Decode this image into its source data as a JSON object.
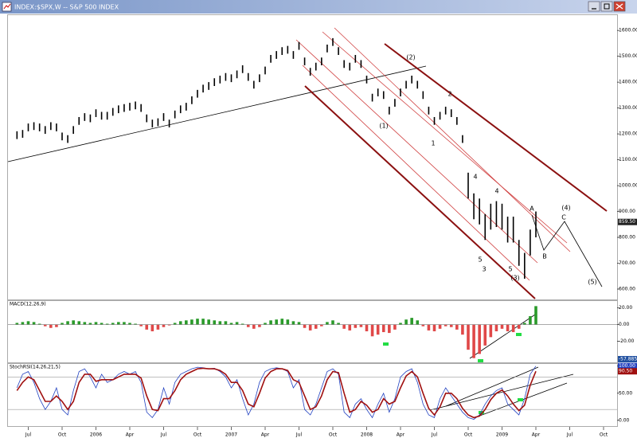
{
  "window": {
    "title": "INDEX:$SPX,W -- S&P 500 INDEX"
  },
  "chart_data": [
    {
      "type": "range-bar",
      "color": "#000000",
      "x": [
        0,
        0.5,
        1,
        1.5,
        2,
        2.5,
        3,
        3.5,
        4,
        4.5,
        5,
        5.5,
        6,
        6.5,
        7,
        7.5,
        8,
        8.5,
        9,
        9.5,
        10,
        10.5,
        11,
        11.5,
        12,
        12.5,
        13,
        13.5,
        14,
        14.5,
        15,
        15.5,
        16,
        16.5,
        17,
        17.5,
        18,
        18.5,
        19,
        19.5,
        20,
        20.5,
        21,
        21.5,
        22,
        22.5,
        23,
        23.5,
        24,
        24.5,
        25,
        25.5,
        26,
        26.5,
        27,
        27.5,
        28,
        28.5,
        29,
        29.5,
        30,
        30.5,
        31,
        31.5,
        32,
        32.5,
        33,
        33.5,
        34,
        34.5,
        35,
        35.5,
        36,
        36.5,
        37,
        37.5,
        38,
        38.5,
        39,
        39.5,
        40,
        40.5,
        41,
        41.5,
        42,
        42.5,
        43,
        43.5,
        44,
        44.5,
        45,
        45.5,
        46
      ],
      "high": [
        1210,
        1215,
        1240,
        1245,
        1240,
        1230,
        1245,
        1240,
        1205,
        1195,
        1230,
        1265,
        1280,
        1275,
        1295,
        1285,
        1285,
        1300,
        1310,
        1315,
        1320,
        1325,
        1315,
        1275,
        1255,
        1260,
        1280,
        1255,
        1290,
        1310,
        1320,
        1345,
        1370,
        1390,
        1400,
        1415,
        1425,
        1435,
        1430,
        1445,
        1465,
        1435,
        1405,
        1430,
        1460,
        1505,
        1520,
        1535,
        1540,
        1520,
        1555,
        1495,
        1455,
        1475,
        1495,
        1545,
        1570,
        1535,
        1485,
        1475,
        1505,
        1485,
        1425,
        1355,
        1375,
        1365,
        1305,
        1335,
        1375,
        1405,
        1425,
        1405,
        1365,
        1305,
        1265,
        1285,
        1305,
        1295,
        1265,
        1195,
        1050,
        970,
        950,
        890,
        930,
        940,
        930,
        880,
        880,
        790,
        740,
        830,
        900
      ],
      "low": [
        1180,
        1185,
        1210,
        1215,
        1210,
        1200,
        1215,
        1210,
        1175,
        1165,
        1200,
        1235,
        1250,
        1245,
        1265,
        1255,
        1255,
        1270,
        1280,
        1285,
        1290,
        1295,
        1285,
        1245,
        1225,
        1230,
        1250,
        1225,
        1260,
        1280,
        1290,
        1315,
        1340,
        1360,
        1370,
        1385,
        1395,
        1405,
        1400,
        1415,
        1435,
        1405,
        1375,
        1400,
        1430,
        1475,
        1490,
        1505,
        1510,
        1490,
        1525,
        1465,
        1425,
        1445,
        1465,
        1515,
        1540,
        1505,
        1455,
        1445,
        1475,
        1455,
        1395,
        1325,
        1345,
        1335,
        1275,
        1305,
        1345,
        1375,
        1395,
        1375,
        1335,
        1275,
        1235,
        1255,
        1275,
        1265,
        1235,
        1165,
        950,
        870,
        850,
        790,
        830,
        840,
        830,
        780,
        780,
        690,
        640,
        730,
        800
      ],
      "xlim": [
        -0.8,
        53.2
      ],
      "ylim": [
        560,
        1662
      ],
      "xticks": [
        {
          "value": 1,
          "label": "Jul"
        },
        {
          "value": 4,
          "label": "Oct"
        },
        {
          "value": 7,
          "label": "2006"
        },
        {
          "value": 10,
          "label": "Apr"
        },
        {
          "value": 13,
          "label": "Jul"
        },
        {
          "value": 16,
          "label": "Oct"
        },
        {
          "value": 19,
          "label": "2007"
        },
        {
          "value": 22,
          "label": "Apr"
        },
        {
          "value": 25,
          "label": "Jul"
        },
        {
          "value": 28,
          "label": "Oct"
        },
        {
          "value": 31,
          "label": "2008"
        },
        {
          "value": 34,
          "label": "Apr"
        },
        {
          "value": 37,
          "label": "Jul"
        },
        {
          "value": 40,
          "label": "Oct"
        },
        {
          "value": 43,
          "label": "2009"
        },
        {
          "value": 46,
          "label": "Apr"
        },
        {
          "value": 49,
          "label": "Jul"
        },
        {
          "value": 52,
          "label": "Oct"
        }
      ],
      "yticks": [
        {
          "value": 1600,
          "label": "1600.00"
        },
        {
          "value": 1500,
          "label": "1500.00"
        },
        {
          "value": 1400,
          "label": "1400.00"
        },
        {
          "value": 1300,
          "label": "1300.00"
        },
        {
          "value": 1200,
          "label": "1200.00"
        },
        {
          "value": 1100,
          "label": "1100.00"
        },
        {
          "value": 1000,
          "label": "1000.00"
        },
        {
          "value": 900,
          "label": "900.00"
        },
        {
          "value": 800,
          "label": "800.00"
        },
        {
          "value": 700,
          "label": "700.00"
        },
        {
          "value": 600,
          "label": "600.00"
        }
      ],
      "last_price": {
        "value": 859.5,
        "label": "859.50"
      },
      "annotations": [
        "(2)",
        "2",
        "(1)",
        "1",
        "4",
        "4",
        "5",
        "3",
        "5",
        "(3)",
        "A",
        "B",
        "C",
        "(4)",
        "(5)"
      ]
    },
    {
      "type": "histogram",
      "title": "MACD(12,26,9)",
      "values": [
        2,
        3,
        4,
        3,
        1,
        -2,
        -4,
        -3,
        2,
        4,
        5,
        4,
        3,
        2,
        3,
        2,
        1,
        2,
        3,
        3,
        2,
        1,
        -2,
        -6,
        -8,
        -6,
        -3,
        -1,
        2,
        4,
        5,
        6,
        7,
        7,
        6,
        5,
        4,
        4,
        2,
        3,
        1,
        -3,
        -5,
        -3,
        2,
        5,
        6,
        7,
        6,
        4,
        3,
        -4,
        -7,
        -5,
        -2,
        3,
        5,
        2,
        -5,
        -7,
        -4,
        -3,
        -8,
        -14,
        -12,
        -9,
        -10,
        -6,
        2,
        6,
        8,
        5,
        -2,
        -7,
        -8,
        -5,
        -2,
        -3,
        -6,
        -12,
        -30,
        -40,
        -35,
        -25,
        -15,
        -8,
        -5,
        -8,
        -9,
        -5,
        2,
        10,
        22
      ],
      "positive_color": "#2a9a2a",
      "negative_color": "#e04848",
      "ylim": [
        -46,
        29
      ],
      "yticks": [
        {
          "value": 20,
          "label": "20.00"
        },
        {
          "value": 0,
          "label": "0.00"
        },
        {
          "value": -20,
          "label": "-20.00"
        }
      ],
      "readout": "-57.885"
    },
    {
      "type": "line",
      "title": "StochRSI(14,26,21,5)",
      "series": [
        {
          "color": "#2040c0",
          "values": [
            60,
            85,
            90,
            70,
            40,
            20,
            35,
            60,
            20,
            10,
            55,
            90,
            95,
            80,
            60,
            85,
            70,
            75,
            85,
            90,
            85,
            90,
            70,
            15,
            5,
            20,
            60,
            30,
            70,
            85,
            90,
            95,
            98,
            97,
            95,
            96,
            90,
            80,
            60,
            75,
            40,
            10,
            30,
            70,
            90,
            95,
            97,
            95,
            90,
            60,
            75,
            20,
            10,
            30,
            60,
            90,
            95,
            85,
            15,
            5,
            30,
            40,
            20,
            5,
            30,
            50,
            15,
            40,
            80,
            90,
            95,
            70,
            30,
            10,
            5,
            40,
            60,
            45,
            30,
            15,
            5,
            2,
            10,
            30,
            45,
            55,
            60,
            30,
            20,
            10,
            40,
            85,
            100
          ]
        },
        {
          "color": "#a01010",
          "values": [
            55,
            70,
            80,
            75,
            55,
            35,
            35,
            45,
            35,
            20,
            35,
            70,
            85,
            85,
            72,
            75,
            75,
            75,
            80,
            85,
            85,
            85,
            78,
            45,
            20,
            18,
            40,
            40,
            55,
            75,
            85,
            90,
            95,
            96,
            95,
            95,
            92,
            85,
            70,
            70,
            55,
            30,
            25,
            50,
            78,
            90,
            95,
            95,
            92,
            75,
            70,
            45,
            20,
            25,
            45,
            75,
            90,
            88,
            50,
            15,
            20,
            35,
            28,
            15,
            20,
            40,
            30,
            35,
            60,
            82,
            90,
            80,
            50,
            22,
            10,
            25,
            50,
            50,
            40,
            22,
            10,
            5,
            8,
            20,
            38,
            50,
            56,
            45,
            30,
            18,
            28,
            65,
            90.5
          ]
        }
      ],
      "ylim": [
        -12,
        104
      ],
      "yticks": [
        {
          "value": 100,
          "label": "100.00"
        },
        {
          "value": 50,
          "label": "50.00"
        },
        {
          "value": 0,
          "label": "0.00"
        }
      ],
      "ref_lines": [
        80,
        20
      ],
      "readouts": [
        {
          "value": 100,
          "label": "100.00"
        },
        {
          "value": 90.5,
          "label": "90.50"
        }
      ]
    }
  ]
}
